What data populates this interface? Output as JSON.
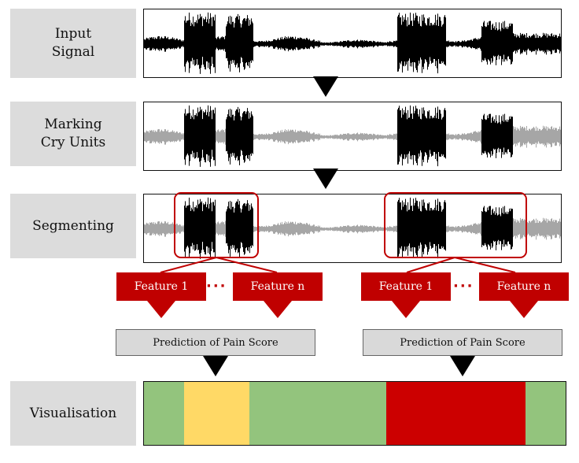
{
  "stages": [
    {
      "key": "input",
      "label_lines": [
        "Input",
        "Signal"
      ]
    },
    {
      "key": "marking",
      "label_lines": [
        "Marking",
        "Cry Units"
      ]
    },
    {
      "key": "segmenting",
      "label_lines": [
        "Segmenting"
      ]
    },
    {
      "key": "visualisation",
      "label_lines": [
        "Visualisation"
      ]
    }
  ],
  "features": {
    "left": {
      "first": "Feature 1",
      "last": "Feature n",
      "dots": "···"
    },
    "right": {
      "first": "Feature 1",
      "last": "Feature n",
      "dots": "···"
    }
  },
  "predictions": {
    "left": "Prediction of Pain Score",
    "right": "Prediction of Pain Score"
  },
  "colors": {
    "signal": "#000000",
    "background_signal": "#a6a6a6",
    "accent_red": "#c00000",
    "low_pain": "#93c47d",
    "medium_pain": "#ffd966",
    "high_pain": "#cc0000",
    "label_bg": "#dcdcdc"
  },
  "visualisation": {
    "segments": [
      {
        "level": "low",
        "fraction": 0.095
      },
      {
        "level": "medium",
        "fraction": 0.155
      },
      {
        "level": "low",
        "fraction": 0.325
      },
      {
        "level": "high",
        "fraction": 0.33
      },
      {
        "level": "low",
        "fraction": 0.095
      }
    ]
  },
  "cry_units": [
    {
      "start": 0.095,
      "end": 0.17,
      "intensity": 1.0
    },
    {
      "start": 0.195,
      "end": 0.26,
      "intensity": 0.85
    },
    {
      "start": 0.605,
      "end": 0.72,
      "intensity": 0.95
    },
    {
      "start": 0.805,
      "end": 0.88,
      "intensity": 0.4
    }
  ]
}
